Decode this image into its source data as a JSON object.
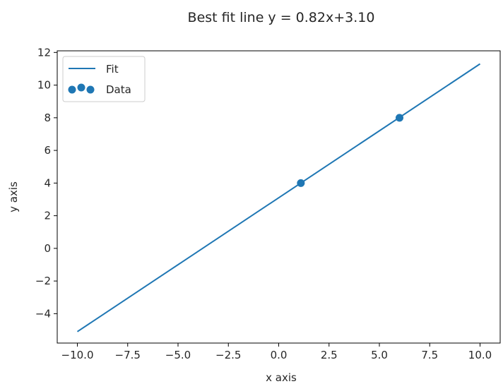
{
  "chart_data": {
    "type": "scatter",
    "title": "Best fit line y = 0.82x+3.10",
    "xlabel": "x axis",
    "ylabel": "y axis",
    "xlim": [
      -11,
      11
    ],
    "ylim": [
      -5.8,
      12.1
    ],
    "xticks": [
      -10,
      -7.5,
      -5,
      -2.5,
      0,
      2.5,
      5,
      7.5,
      10
    ],
    "xtick_labels": [
      "−10.0",
      "−7.5",
      "−5.0",
      "−2.5",
      "0.0",
      "2.5",
      "5.0",
      "7.5",
      "10.0"
    ],
    "yticks": [
      -4,
      -2,
      0,
      2,
      4,
      6,
      8,
      10,
      12
    ],
    "ytick_labels": [
      "−4",
      "−2",
      "0",
      "2",
      "4",
      "6",
      "8",
      "10",
      "12"
    ],
    "grid": false,
    "legend": {
      "placement": "top-left",
      "entries": [
        "Fit",
        "Data"
      ]
    },
    "series": [
      {
        "name": "Fit",
        "kind": "line",
        "color": "#1f77b4",
        "x": [
          -10,
          10
        ],
        "y": [
          -5.1,
          11.3
        ]
      },
      {
        "name": "Data",
        "kind": "scatter",
        "color": "#1f77b4",
        "x": [
          1.1,
          6.0
        ],
        "y": [
          4.0,
          8.0
        ]
      }
    ]
  }
}
